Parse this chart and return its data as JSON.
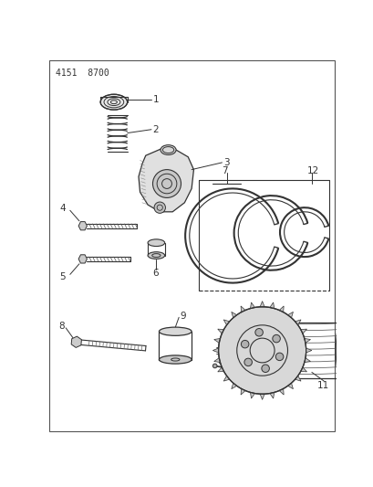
{
  "bg_color": "#ffffff",
  "line_color": "#333333",
  "header_text": "4151  8700",
  "border": [
    3,
    3,
    407,
    530
  ]
}
